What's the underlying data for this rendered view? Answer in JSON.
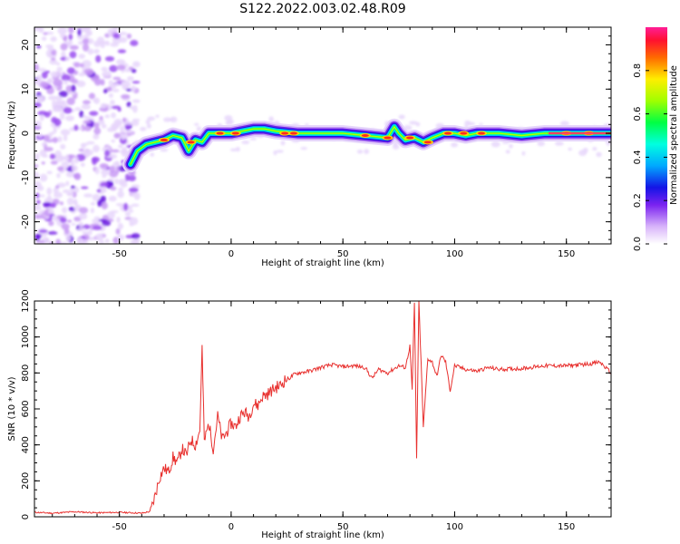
{
  "title": "S122.2022.003.02.48.R09",
  "chart_data": [
    {
      "type": "heatmap",
      "xlabel": "Height of straight line (km)",
      "ylabel": "Frequency (Hz)",
      "xlim": [
        -88,
        170
      ],
      "ylim": [
        -25,
        24
      ],
      "xticks": [
        -50,
        0,
        50,
        100,
        150
      ],
      "yticks": [
        -20,
        -10,
        0,
        10,
        20
      ],
      "colorbar": {
        "label": "Normalized spectral amplitude",
        "range": [
          0,
          1
        ],
        "ticks": [
          0.0,
          0.2,
          0.4,
          0.6,
          0.8
        ]
      },
      "ridge": {
        "x": [
          -45,
          -42,
          -38,
          -34,
          -30,
          -26,
          -22,
          -19,
          -16,
          -13,
          -10,
          -5,
          0,
          5,
          10,
          15,
          20,
          30,
          40,
          50,
          60,
          70,
          73,
          75,
          78,
          82,
          86,
          90,
          95,
          100,
          105,
          110,
          120,
          130,
          140,
          150,
          160,
          170
        ],
        "freq": [
          -7,
          -4,
          -2.5,
          -2,
          -1.5,
          -0.5,
          -1,
          -4,
          -1.5,
          -2,
          0,
          0,
          0,
          0.5,
          1,
          1,
          0.5,
          0,
          0,
          0,
          -0.5,
          -1,
          1.5,
          0,
          -1.5,
          -1,
          -2,
          -1,
          0,
          0,
          -0.5,
          0,
          0,
          -0.5,
          0,
          0,
          0,
          0
        ]
      },
      "noise_region_x": [
        -88,
        -42
      ]
    },
    {
      "type": "line",
      "xlabel": "Height of straight line (km)",
      "ylabel": "SNR (10 * v/v)",
      "xlim": [
        -88,
        170
      ],
      "ylim": [
        0,
        1200
      ],
      "xticks": [
        -50,
        0,
        50,
        100,
        150
      ],
      "yticks": [
        0,
        200,
        400,
        600,
        800,
        1000,
        1200
      ],
      "color": "#e8302e",
      "series": [
        {
          "x": [
            -88,
            -80,
            -70,
            -60,
            -50,
            -40,
            -36,
            -34,
            -32,
            -30,
            -28,
            -26,
            -24,
            -22,
            -20,
            -18,
            -16,
            -14,
            -13,
            -12,
            -10,
            -8,
            -6,
            -4,
            -2,
            0,
            2,
            4,
            6,
            8,
            10,
            12,
            14,
            16,
            18,
            20,
            22,
            24,
            26,
            28,
            30,
            35,
            40,
            45,
            50,
            55,
            60,
            63,
            66,
            70,
            75,
            78,
            80,
            81,
            82,
            83,
            84,
            85,
            86,
            88,
            90,
            92,
            94,
            96,
            98,
            100,
            105,
            110,
            115,
            120,
            130,
            140,
            150,
            160,
            165,
            170
          ],
          "y": [
            25,
            20,
            28,
            22,
            25,
            20,
            30,
            120,
            220,
            270,
            250,
            330,
            300,
            380,
            340,
            430,
            400,
            480,
            940,
            420,
            520,
            380,
            560,
            430,
            470,
            520,
            500,
            560,
            580,
            560,
            630,
            620,
            670,
            680,
            700,
            720,
            730,
            760,
            770,
            790,
            800,
            810,
            830,
            845,
            835,
            840,
            830,
            770,
            820,
            800,
            840,
            830,
            950,
            700,
            1190,
            330,
            1200,
            850,
            500,
            880,
            860,
            780,
            900,
            860,
            700,
            840,
            820,
            810,
            830,
            820,
            825,
            840,
            840,
            850,
            860,
            800
          ]
        }
      ]
    }
  ]
}
